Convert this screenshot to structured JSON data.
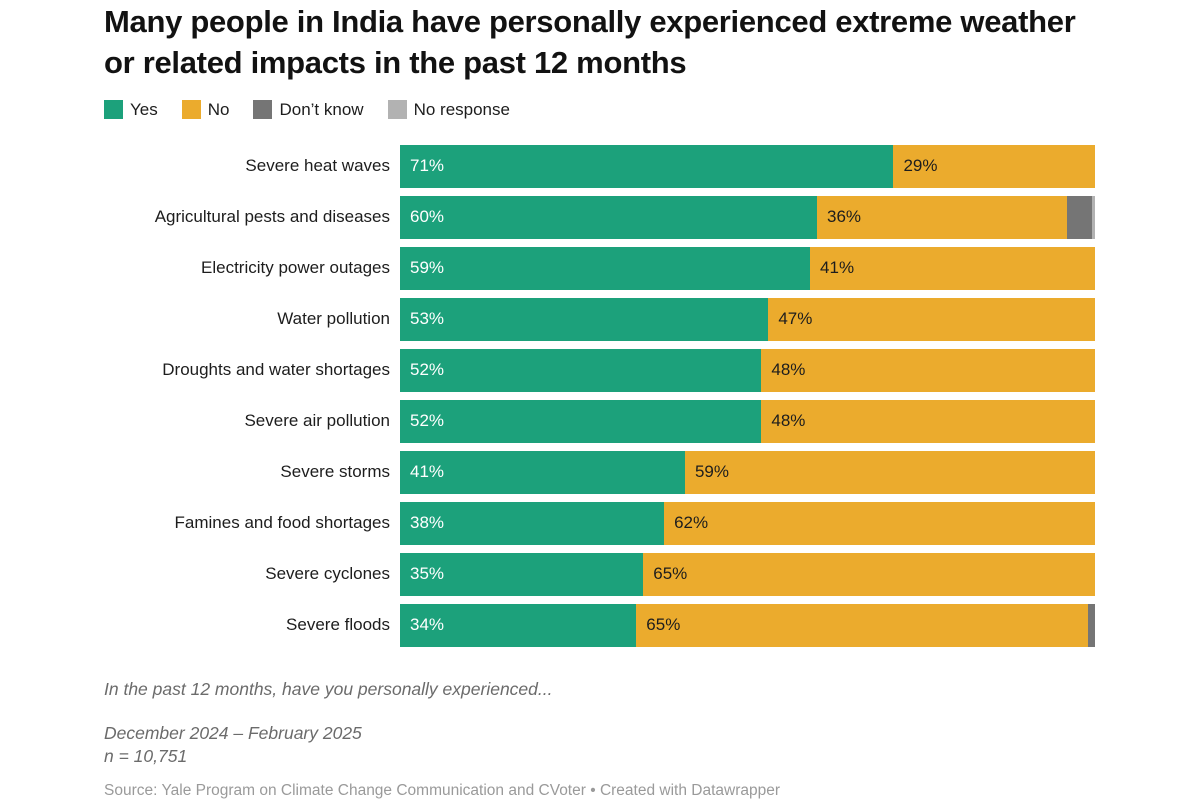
{
  "header": {
    "title": "Many people in India have personally experienced extreme weather or related impacts in the past 12 months"
  },
  "legend": {
    "items": [
      {
        "label": "Yes",
        "color": "#1CA17B"
      },
      {
        "label": "No",
        "color": "#EBAB2D"
      },
      {
        "label": "Don’t know",
        "color": "#757575"
      },
      {
        "label": "No response",
        "color": "#B2B2B2"
      }
    ]
  },
  "chart_data": {
    "type": "bar",
    "orientation": "horizontal-stacked",
    "title": "Many people in India have personally experienced extreme weather or related impacts in the past 12 months",
    "xlabel": "",
    "ylabel": "",
    "xlim": [
      0,
      100
    ],
    "grid": false,
    "legend_position": "top",
    "value_label_suffix": "%",
    "value_label_min_show": 5,
    "categories": [
      "Severe heat waves",
      "Agricultural pests and diseases",
      "Electricity power outages",
      "Water pollution",
      "Droughts and water shortages",
      "Severe air pollution",
      "Severe storms",
      "Famines and food shortages",
      "Severe cyclones",
      "Severe floods"
    ],
    "series": [
      {
        "name": "Yes",
        "color": "#1CA17B",
        "label_color": "#ffffff",
        "values": [
          71,
          60,
          59,
          53,
          52,
          52,
          41,
          38,
          35,
          34
        ]
      },
      {
        "name": "No",
        "color": "#EBAB2D",
        "label_color": "#1d1d1d",
        "values": [
          29,
          36,
          41,
          47,
          48,
          48,
          59,
          62,
          65,
          65
        ]
      },
      {
        "name": "Don't know",
        "color": "#757575",
        "label_color": "#1d1d1d",
        "values": [
          0,
          3.5,
          0,
          0,
          0,
          0,
          0,
          0,
          0,
          1
        ]
      },
      {
        "name": "No response",
        "color": "#B2B2B2",
        "label_color": "#1d1d1d",
        "values": [
          0,
          0.5,
          0,
          0,
          0,
          0,
          0,
          0,
          0,
          0
        ]
      }
    ]
  },
  "footer": {
    "question": "In the past 12 months, have you personally experienced...",
    "date_range": "December 2024 – February 2025",
    "sample_size": "n = 10,751",
    "source": "Source: Yale Program on Climate Change Communication and CVoter • Created with Datawrapper"
  }
}
